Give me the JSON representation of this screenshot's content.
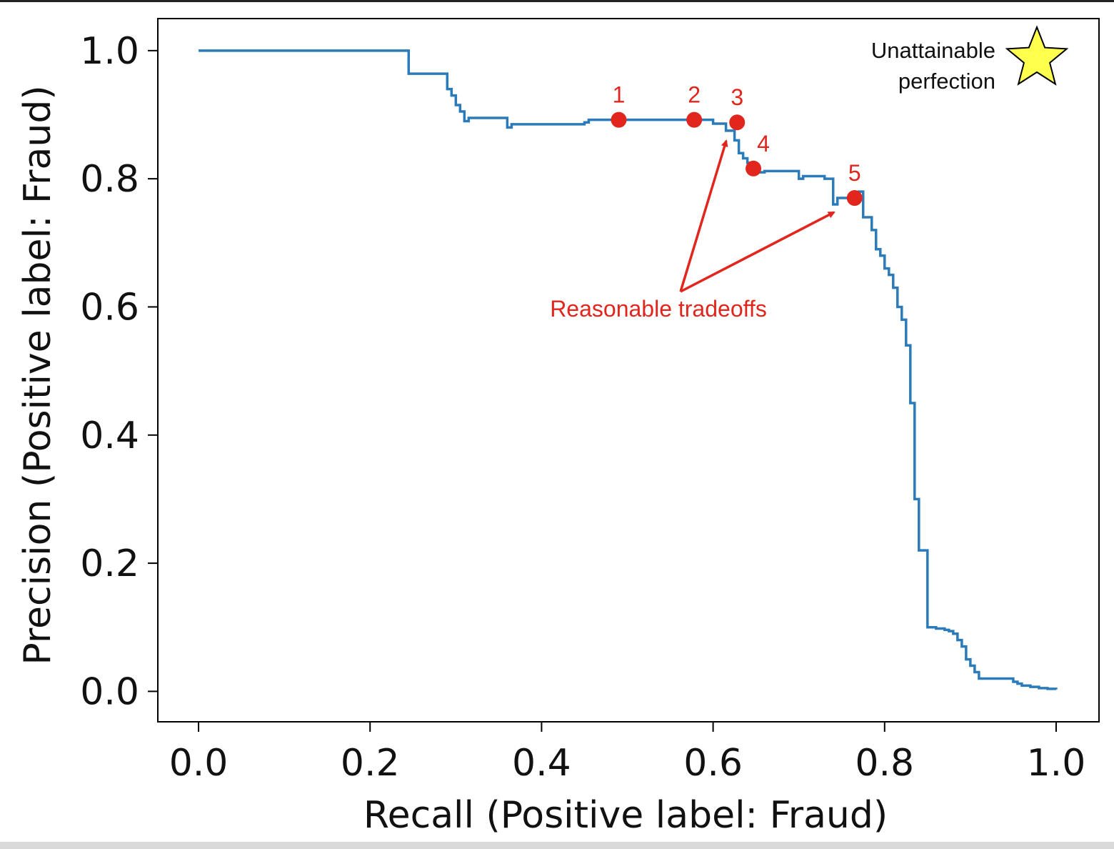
{
  "chart_data": {
    "type": "line",
    "title": "",
    "xlabel": "Recall (Positive label: Fraud)",
    "ylabel": "Precision (Positive label: Fraud)",
    "xlim": [
      -0.0475,
      1.05
    ],
    "ylim": [
      -0.0475,
      1.05
    ],
    "xticks": [
      0.0,
      0.2,
      0.4,
      0.6,
      0.8,
      1.0
    ],
    "yticks": [
      0.0,
      0.2,
      0.4,
      0.6,
      0.8,
      1.0
    ],
    "xtick_labels": [
      "0.0",
      "0.2",
      "0.4",
      "0.6",
      "0.8",
      "1.0"
    ],
    "ytick_labels": [
      "0.0",
      "0.2",
      "0.4",
      "0.6",
      "0.8",
      "1.0"
    ],
    "grid": false,
    "line_color": "#2b7bba",
    "series": [
      {
        "name": "",
        "step": "post",
        "x": [
          0.0,
          0.245,
          0.29,
          0.295,
          0.3,
          0.305,
          0.31,
          0.315,
          0.36,
          0.365,
          0.45,
          0.455,
          0.55,
          0.555,
          0.6,
          0.605,
          0.615,
          0.625,
          0.63,
          0.635,
          0.64,
          0.645,
          0.65,
          0.66,
          0.7,
          0.705,
          0.73,
          0.735,
          0.74,
          0.745,
          0.77,
          0.775,
          0.785,
          0.79,
          0.795,
          0.8,
          0.805,
          0.81,
          0.815,
          0.82,
          0.825,
          0.83,
          0.835,
          0.84,
          0.85,
          0.86,
          0.87,
          0.875,
          0.88,
          0.885,
          0.89,
          0.895,
          0.9,
          0.905,
          0.91,
          0.95,
          0.955,
          0.96,
          0.97,
          0.98,
          0.99,
          1.0
        ],
        "y": [
          1.0,
          0.964,
          0.94,
          0.93,
          0.915,
          0.905,
          0.89,
          0.895,
          0.88,
          0.885,
          0.888,
          0.892,
          0.892,
          0.892,
          0.886,
          0.886,
          0.875,
          0.86,
          0.84,
          0.832,
          0.825,
          0.818,
          0.81,
          0.812,
          0.8,
          0.804,
          0.8,
          0.8,
          0.76,
          0.77,
          0.78,
          0.74,
          0.72,
          0.69,
          0.68,
          0.66,
          0.65,
          0.63,
          0.6,
          0.58,
          0.54,
          0.45,
          0.3,
          0.22,
          0.1,
          0.098,
          0.096,
          0.094,
          0.09,
          0.08,
          0.07,
          0.05,
          0.04,
          0.03,
          0.02,
          0.015,
          0.012,
          0.009,
          0.007,
          0.005,
          0.004,
          0.003
        ]
      }
    ],
    "points": [
      {
        "label": "1",
        "x": 0.49,
        "y": 0.892
      },
      {
        "label": "2",
        "x": 0.578,
        "y": 0.892
      },
      {
        "label": "3",
        "x": 0.628,
        "y": 0.888
      },
      {
        "label": "4",
        "x": 0.647,
        "y": 0.816
      },
      {
        "label": "5",
        "x": 0.765,
        "y": 0.77
      }
    ],
    "point_color": "#e0261d",
    "annotation_text": "Reasonable tradeoffs",
    "star": {
      "x": 1.0,
      "y": 1.0,
      "label_line1": "Unattainable",
      "label_line2": "perfection",
      "color": "#ffff4d"
    }
  }
}
